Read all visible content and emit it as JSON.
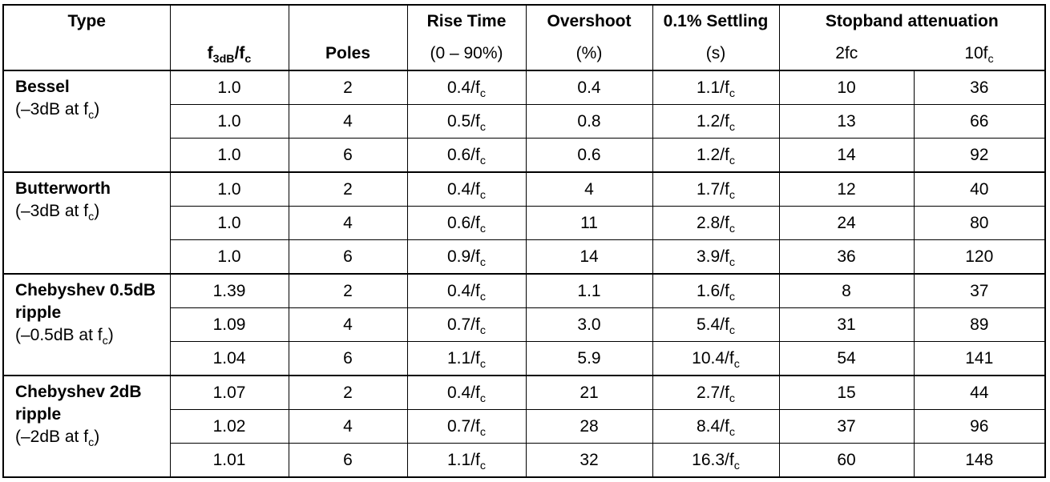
{
  "header": {
    "type": "Type",
    "f3db_main": "f",
    "f3db_sub": "3dB",
    "f3db_slash": "/f",
    "f3db_sub2": "c",
    "poles": "Poles",
    "rise_time": "Rise Time",
    "rise_time_unit": "(0 – 90%)",
    "overshoot": "Overshoot",
    "overshoot_unit": "(%)",
    "settling": "0.1% Settling",
    "settling_unit": "(s)",
    "stopband": "Stopband attenuation",
    "stop_2fc": "2fc",
    "stop_10fc_main": "10f",
    "stop_10fc_sub": "c"
  },
  "groups": [
    {
      "name": "Bessel",
      "sub_prefix": "(–3dB at f",
      "sub_sub": "c",
      "sub_suffix": ")",
      "rows": [
        {
          "f3db": "1.0",
          "poles": "2",
          "rise": "0.4/f",
          "overshoot": "0.4",
          "settle": "1.1/f",
          "a2fc": "10",
          "a10fc": "36"
        },
        {
          "f3db": "1.0",
          "poles": "4",
          "rise": "0.5/f",
          "overshoot": "0.8",
          "settle": "1.2/f",
          "a2fc": "13",
          "a10fc": "66"
        },
        {
          "f3db": "1.0",
          "poles": "6",
          "rise": "0.6/f",
          "overshoot": "0.6",
          "settle": "1.2/f",
          "a2fc": "14",
          "a10fc": "92"
        }
      ]
    },
    {
      "name": "Butterworth",
      "sub_prefix": "(–3dB at f",
      "sub_sub": "c",
      "sub_suffix": ")",
      "rows": [
        {
          "f3db": "1.0",
          "poles": "2",
          "rise": "0.4/f",
          "overshoot": "4",
          "settle": "1.7/f",
          "a2fc": "12",
          "a10fc": "40"
        },
        {
          "f3db": "1.0",
          "poles": "4",
          "rise": "0.6/f",
          "overshoot": "11",
          "settle": "2.8/f",
          "a2fc": "24",
          "a10fc": "80"
        },
        {
          "f3db": "1.0",
          "poles": "6",
          "rise": "0.9/f",
          "overshoot": "14",
          "settle": "3.9/f",
          "a2fc": "36",
          "a10fc": "120"
        }
      ]
    },
    {
      "name": "Chebyshev 0.5dB ripple",
      "sub_prefix": "(–0.5dB at f",
      "sub_sub": "c",
      "sub_suffix": ")",
      "rows": [
        {
          "f3db": "1.39",
          "poles": "2",
          "rise": "0.4/f",
          "overshoot": "1.1",
          "settle": "1.6/f",
          "a2fc": "8",
          "a10fc": "37"
        },
        {
          "f3db": "1.09",
          "poles": "4",
          "rise": "0.7/f",
          "overshoot": "3.0",
          "settle": "5.4/f",
          "a2fc": "31",
          "a10fc": "89"
        },
        {
          "f3db": "1.04",
          "poles": "6",
          "rise": "1.1/f",
          "overshoot": "5.9",
          "settle": "10.4/f",
          "a2fc": "54",
          "a10fc": "141"
        }
      ]
    },
    {
      "name": "Chebyshev 2dB ripple",
      "sub_prefix": "(–2dB at f",
      "sub_sub": "c",
      "sub_suffix": ")",
      "rows": [
        {
          "f3db": "1.07",
          "poles": "2",
          "rise": "0.4/f",
          "overshoot": "21",
          "settle": "2.7/f",
          "a2fc": "15",
          "a10fc": "44"
        },
        {
          "f3db": "1.02",
          "poles": "4",
          "rise": "0.7/f",
          "overshoot": "28",
          "settle": "8.4/f",
          "a2fc": "37",
          "a10fc": "96"
        },
        {
          "f3db": "1.01",
          "poles": "6",
          "rise": "1.1/f",
          "overshoot": "32",
          "settle": "16.3/f",
          "a2fc": "60",
          "a10fc": "148"
        }
      ]
    }
  ],
  "fc_subscript": "c"
}
